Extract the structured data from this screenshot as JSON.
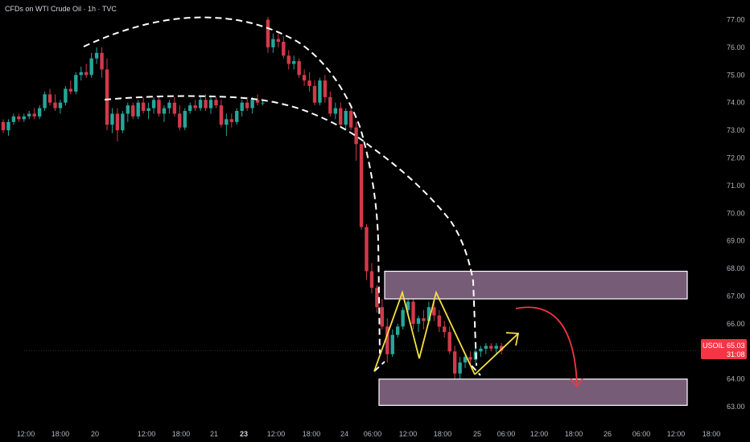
{
  "header": {
    "title": "CFDs on WTI Crude Oil · 1h · TVC"
  },
  "price_tag": {
    "symbol": "USOIL",
    "price": "65.03",
    "countdown": "31:08",
    "color": "#f23645"
  },
  "colors": {
    "background": "#000000",
    "up_candle": "#26a69a",
    "down_candle": "#d13a4a",
    "zone_fill": "#8c6c8c",
    "zone_border": "#ffffff",
    "zigzag": "#f5e042",
    "curves": "#ffffff",
    "projection_arrow": "#f23645"
  },
  "chart_data": {
    "type": "candlestick",
    "ylim": [
      62.7,
      77.35
    ],
    "y_ticks": [
      "63.00",
      "64.00",
      "65.00",
      "66.00",
      "67.00",
      "68.00",
      "69.00",
      "70.00",
      "71.00",
      "72.00",
      "73.00",
      "74.00",
      "75.00",
      "76.00",
      "77.00"
    ],
    "x_ticks": [
      {
        "label": "12:00",
        "bold": false
      },
      {
        "label": "18:00",
        "bold": false
      },
      {
        "label": "20",
        "bold": false
      },
      {
        "label": "12:00",
        "bold": false
      },
      {
        "label": "18:00",
        "bold": false
      },
      {
        "label": "21",
        "bold": false
      },
      {
        "label": "23",
        "bold": true
      },
      {
        "label": "12:00",
        "bold": false
      },
      {
        "label": "18:00",
        "bold": false
      },
      {
        "label": "24",
        "bold": false
      },
      {
        "label": "06:00",
        "bold": false
      },
      {
        "label": "12:00",
        "bold": false
      },
      {
        "label": "18:00",
        "bold": false
      },
      {
        "label": "25",
        "bold": false
      },
      {
        "label": "06:00",
        "bold": false
      },
      {
        "label": "12:00",
        "bold": false
      },
      {
        "label": "18:00",
        "bold": false
      },
      {
        "label": "26",
        "bold": false
      },
      {
        "label": "06:00",
        "bold": false
      },
      {
        "label": "12:00",
        "bold": false
      },
      {
        "label": "18:00",
        "bold": false
      }
    ],
    "candles_ohlc": [
      [
        73.3,
        73.4,
        72.9,
        73.0
      ],
      [
        73.0,
        73.4,
        72.8,
        73.3
      ],
      [
        73.3,
        73.6,
        73.2,
        73.5
      ],
      [
        73.5,
        73.6,
        73.3,
        73.4
      ],
      [
        73.4,
        73.6,
        73.3,
        73.5
      ],
      [
        73.5,
        73.7,
        73.4,
        73.6
      ],
      [
        73.6,
        73.8,
        73.4,
        73.5
      ],
      [
        73.5,
        73.9,
        73.4,
        73.8
      ],
      [
        73.8,
        74.4,
        73.7,
        74.3
      ],
      [
        74.3,
        74.5,
        73.9,
        74.0
      ],
      [
        74.0,
        74.3,
        73.7,
        73.8
      ],
      [
        73.8,
        74.1,
        73.6,
        74.0
      ],
      [
        74.0,
        74.6,
        73.9,
        74.5
      ],
      [
        74.5,
        74.8,
        74.3,
        74.4
      ],
      [
        74.4,
        75.1,
        74.3,
        75.0
      ],
      [
        75.0,
        75.3,
        74.8,
        75.1
      ],
      [
        75.1,
        75.4,
        74.9,
        75.0
      ],
      [
        75.0,
        75.8,
        74.9,
        75.6
      ],
      [
        75.6,
        76.0,
        75.4,
        75.8
      ],
      [
        75.8,
        76.0,
        74.9,
        75.2
      ],
      [
        75.2,
        75.6,
        73.0,
        73.2
      ],
      [
        73.2,
        73.8,
        72.9,
        73.6
      ],
      [
        73.6,
        73.8,
        72.6,
        73.0
      ],
      [
        73.0,
        73.7,
        72.9,
        73.6
      ],
      [
        73.6,
        74.0,
        73.3,
        73.9
      ],
      [
        73.9,
        74.0,
        73.4,
        73.5
      ],
      [
        73.5,
        74.1,
        73.4,
        74.0
      ],
      [
        74.0,
        74.2,
        73.6,
        73.7
      ],
      [
        73.7,
        74.0,
        73.4,
        73.8
      ],
      [
        73.8,
        74.2,
        73.6,
        74.1
      ],
      [
        74.1,
        74.2,
        73.5,
        73.6
      ],
      [
        73.6,
        73.9,
        73.3,
        73.8
      ],
      [
        73.8,
        74.1,
        73.6,
        74.0
      ],
      [
        74.0,
        74.2,
        73.5,
        73.6
      ],
      [
        73.6,
        73.9,
        73.0,
        73.1
      ],
      [
        73.1,
        73.8,
        73.0,
        73.7
      ],
      [
        73.7,
        74.0,
        73.6,
        73.9
      ],
      [
        73.9,
        74.1,
        73.7,
        73.8
      ],
      [
        73.8,
        74.2,
        73.7,
        74.1
      ],
      [
        74.1,
        74.3,
        73.7,
        73.8
      ],
      [
        73.8,
        74.2,
        73.6,
        74.1
      ],
      [
        74.1,
        74.2,
        73.8,
        73.9
      ],
      [
        73.9,
        74.1,
        73.1,
        73.2
      ],
      [
        73.2,
        73.6,
        72.8,
        73.4
      ],
      [
        73.4,
        73.6,
        73.1,
        73.3
      ],
      [
        73.3,
        73.8,
        73.2,
        73.7
      ],
      [
        73.7,
        74.1,
        73.5,
        74.0
      ],
      [
        74.0,
        74.2,
        73.7,
        73.8
      ],
      [
        73.8,
        74.2,
        73.6,
        74.1
      ],
      [
        74.1,
        74.3,
        73.9,
        74.0
      ],
      [
        74.0,
        74.1,
        73.9,
        74.0
      ],
      [
        77.0,
        77.1,
        75.8,
        76.0
      ],
      [
        76.0,
        76.5,
        75.8,
        76.3
      ],
      [
        76.3,
        76.5,
        76.0,
        76.2
      ],
      [
        76.2,
        76.4,
        75.6,
        75.7
      ],
      [
        75.7,
        75.9,
        75.2,
        75.4
      ],
      [
        75.4,
        75.7,
        75.2,
        75.5
      ],
      [
        75.5,
        75.6,
        74.9,
        75.0
      ],
      [
        75.0,
        75.2,
        74.6,
        74.8
      ],
      [
        74.8,
        75.1,
        74.4,
        74.6
      ],
      [
        74.6,
        74.8,
        73.9,
        74.0
      ],
      [
        74.0,
        74.9,
        73.9,
        74.8
      ],
      [
        74.8,
        75.0,
        74.0,
        74.2
      ],
      [
        74.2,
        74.4,
        73.5,
        73.6
      ],
      [
        73.6,
        74.0,
        73.4,
        73.8
      ],
      [
        73.8,
        74.0,
        73.1,
        73.2
      ],
      [
        73.2,
        73.8,
        73.0,
        73.7
      ],
      [
        73.7,
        73.9,
        73.0,
        73.1
      ],
      [
        73.1,
        73.3,
        71.9,
        72.5
      ],
      [
        72.5,
        72.5,
        69.4,
        69.5
      ],
      [
        69.5,
        69.6,
        67.6,
        67.9
      ],
      [
        67.9,
        68.2,
        67.1,
        67.3
      ],
      [
        67.3,
        67.4,
        66.4,
        66.6
      ],
      [
        66.6,
        66.9,
        65.8,
        65.9
      ],
      [
        65.9,
        66.2,
        64.6,
        64.9
      ],
      [
        64.9,
        65.8,
        64.8,
        65.6
      ],
      [
        65.6,
        66.0,
        65.5,
        65.9
      ],
      [
        65.9,
        66.6,
        65.8,
        66.5
      ],
      [
        66.5,
        66.9,
        66.3,
        66.8
      ],
      [
        66.8,
        66.9,
        65.8,
        66.0
      ],
      [
        66.0,
        66.3,
        65.7,
        66.2
      ],
      [
        66.2,
        66.5,
        65.8,
        66.1
      ],
      [
        66.1,
        66.8,
        66.0,
        66.6
      ],
      [
        66.6,
        66.8,
        66.1,
        66.3
      ],
      [
        66.3,
        66.5,
        65.7,
        65.9
      ],
      [
        65.9,
        66.1,
        65.5,
        65.7
      ],
      [
        65.7,
        65.9,
        64.9,
        65.0
      ],
      [
        65.0,
        65.2,
        64.0,
        64.2
      ],
      [
        64.2,
        64.8,
        64.0,
        64.6
      ],
      [
        64.6,
        64.9,
        64.4,
        64.8
      ],
      [
        64.8,
        65.0,
        64.5,
        64.7
      ],
      [
        64.7,
        65.1,
        64.6,
        65.0
      ],
      [
        65.0,
        65.2,
        64.8,
        65.1
      ],
      [
        65.1,
        65.3,
        64.9,
        65.2
      ],
      [
        65.2,
        65.3,
        65.0,
        65.1
      ],
      [
        65.1,
        65.3,
        64.9,
        65.2
      ],
      [
        65.2,
        65.3,
        64.9,
        65.03
      ]
    ],
    "current_price": 65.03,
    "zones": [
      {
        "name": "resistance-zone",
        "y_top": 67.9,
        "y_bottom": 66.9
      },
      {
        "name": "support-zone",
        "y_top": 64.0,
        "y_bottom": 63.05
      }
    ],
    "zigzag": [
      [
        64.1,
        0
      ],
      [
        67.0,
        0
      ],
      [
        64.6,
        0
      ],
      [
        67.0,
        0
      ],
      [
        64.0,
        0
      ],
      [
        65.6,
        0
      ]
    ]
  }
}
